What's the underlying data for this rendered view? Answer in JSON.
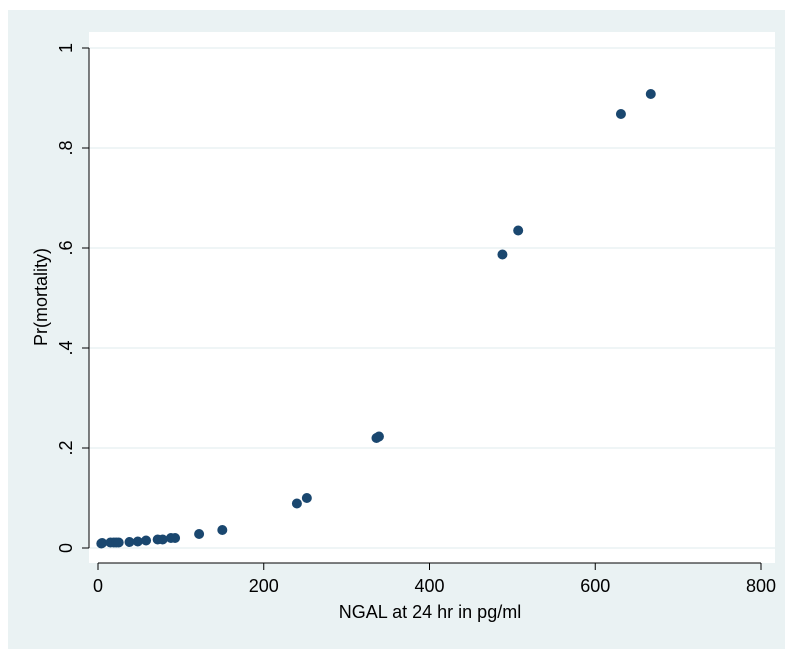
{
  "chart_data": {
    "type": "scatter",
    "title": "",
    "xlabel": "NGAL at 24 hr in pg/ml",
    "ylabel": "Pr(mortality)",
    "xlim": [
      0,
      800
    ],
    "ylim": [
      0,
      1
    ],
    "x_ticks": [
      0,
      200,
      400,
      600,
      800
    ],
    "x_tick_labels": [
      "0",
      "200",
      "400",
      "600",
      "800"
    ],
    "y_ticks": [
      0,
      0.2,
      0.4,
      0.6,
      0.8,
      1
    ],
    "y_tick_labels": [
      "0",
      ".2",
      ".4",
      ".6",
      ".8",
      "1"
    ],
    "grid": "horizontal",
    "legend": "none",
    "colors": {
      "outer_background": "#eaf2f3",
      "plot_background": "#ffffff",
      "grid": "#eaf2f3",
      "marker": "#1a476f",
      "axis": "#000000"
    },
    "series": [
      {
        "points": [
          [
            4,
            0.009
          ],
          [
            5,
            0.01
          ],
          [
            15,
            0.011
          ],
          [
            19,
            0.011
          ],
          [
            22,
            0.011
          ],
          [
            25,
            0.011
          ],
          [
            38,
            0.012
          ],
          [
            48,
            0.013
          ],
          [
            58,
            0.015
          ],
          [
            72,
            0.017
          ],
          [
            78,
            0.017
          ],
          [
            88,
            0.02
          ],
          [
            93,
            0.02
          ],
          [
            122,
            0.028
          ],
          [
            150,
            0.036
          ],
          [
            240,
            0.089
          ],
          [
            252,
            0.1
          ],
          [
            336,
            0.22
          ],
          [
            339,
            0.223
          ],
          [
            488,
            0.587
          ],
          [
            507,
            0.635
          ],
          [
            631,
            0.868
          ],
          [
            667,
            0.908
          ]
        ]
      }
    ]
  }
}
